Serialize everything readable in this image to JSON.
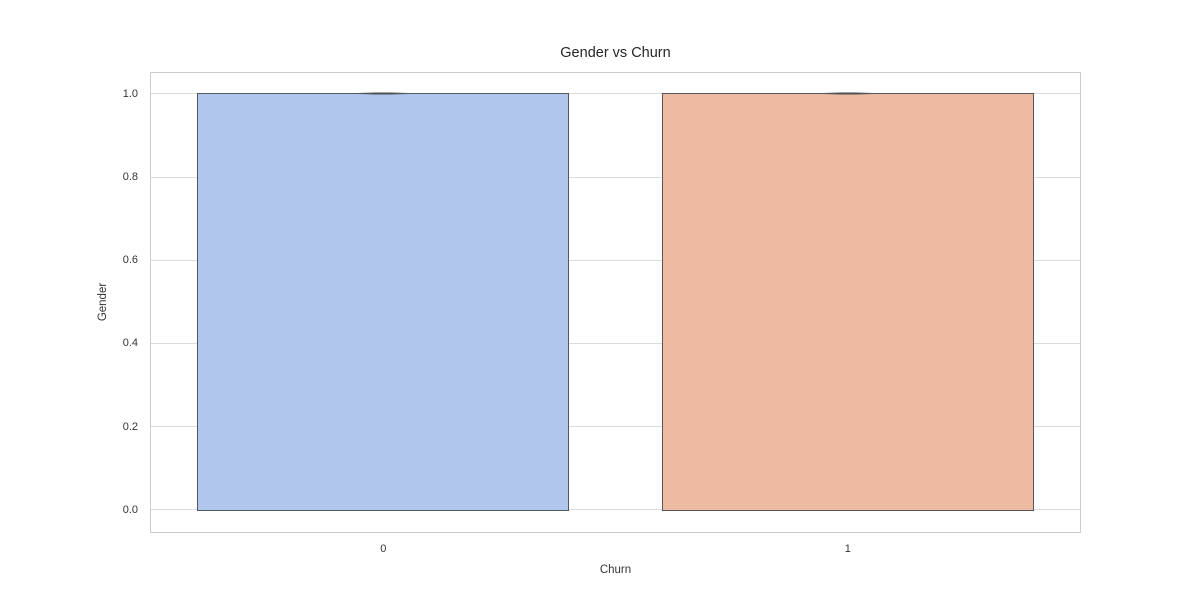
{
  "figure": {
    "background": "#ffffff"
  },
  "chart_data": {
    "type": "bar",
    "title": "Gender vs Churn",
    "xlabel": "Churn",
    "ylabel": "Gender",
    "categories": [
      "0",
      "1"
    ],
    "values": [
      1.0,
      1.0
    ],
    "yticks": [
      "0.0",
      "0.2",
      "0.4",
      "0.6",
      "0.8",
      "1.0"
    ],
    "ytick_values": [
      0.0,
      0.2,
      0.4,
      0.6,
      0.8,
      1.0
    ],
    "ylim": [
      -0.053,
      1.05
    ],
    "bar_width_frac": 0.8,
    "bar_colors": [
      "#b1c6ec",
      "#edbba2"
    ],
    "bar_edge_color": "#54575c",
    "error_marks_at_bar_tops": true,
    "grid": "horizontal",
    "grid_color": "#dcdcdc",
    "spine_color": "#cccccc",
    "legend": "none"
  }
}
